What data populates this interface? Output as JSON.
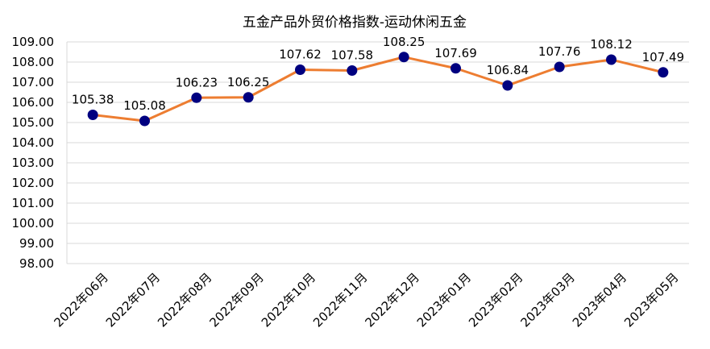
{
  "chart_data": {
    "type": "line",
    "title": "五金产品外贸价格指数-运动休闲五金",
    "xlabel": "",
    "ylabel": "",
    "categories": [
      "2022年06月",
      "2022年07月",
      "2022年08月",
      "2022年09月",
      "2022年10月",
      "2022年11月",
      "2022年12月",
      "2023年01月",
      "2023年02月",
      "2023年03月",
      "2023年04月",
      "2023年05月"
    ],
    "series": [
      {
        "values": [
          105.38,
          105.08,
          106.23,
          106.25,
          107.62,
          107.58,
          108.25,
          107.69,
          106.84,
          107.76,
          108.12,
          107.49
        ],
        "labels": [
          "105.38",
          "105.08",
          "106.23",
          "106.25",
          "107.62",
          "107.58",
          "108.25",
          "107.69",
          "106.84",
          "107.76",
          "108.12",
          "107.49"
        ]
      }
    ],
    "ylim": [
      98,
      109
    ],
    "yticks": [
      "98.00",
      "99.00",
      "100.00",
      "101.00",
      "102.00",
      "103.00",
      "104.00",
      "105.00",
      "106.00",
      "107.00",
      "108.00",
      "109.00"
    ],
    "grid": true,
    "legend": "none",
    "colors": {
      "line": "#ED7D31",
      "marker": "#000080",
      "grid": "#D9D9D9"
    }
  }
}
